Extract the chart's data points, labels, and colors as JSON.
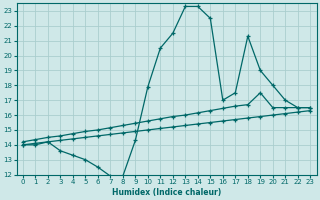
{
  "xlabel": "Humidex (Indice chaleur)",
  "background_color": "#cfe8e8",
  "grid_color": "#aacece",
  "line_color": "#006868",
  "xlim": [
    -0.5,
    23.5
  ],
  "ylim": [
    12,
    23.5
  ],
  "xticks": [
    0,
    1,
    2,
    3,
    4,
    5,
    6,
    7,
    8,
    9,
    10,
    11,
    12,
    13,
    14,
    15,
    16,
    17,
    18,
    19,
    20,
    21,
    22,
    23
  ],
  "yticks": [
    12,
    13,
    14,
    15,
    16,
    17,
    18,
    19,
    20,
    21,
    22,
    23
  ],
  "line1_x": [
    0,
    1,
    2,
    3,
    4,
    5,
    6,
    7,
    8,
    9,
    10,
    11,
    12,
    13,
    14,
    15,
    16,
    17,
    18,
    19,
    20,
    21,
    22,
    23
  ],
  "line1_y": [
    14.0,
    14.0,
    14.2,
    13.6,
    13.3,
    13.0,
    12.5,
    11.9,
    11.9,
    14.3,
    17.9,
    20.5,
    21.5,
    23.3,
    23.3,
    22.5,
    17.0,
    17.5,
    21.3,
    19.0,
    18.0,
    17.0,
    16.5,
    16.5
  ],
  "line2_x": [
    0,
    1,
    2,
    3,
    4,
    5,
    6,
    7,
    8,
    9,
    10,
    11,
    12,
    13,
    14,
    15,
    16,
    17,
    18,
    19,
    20,
    21,
    22,
    23
  ],
  "line2_y": [
    14.2,
    14.35,
    14.5,
    14.6,
    14.75,
    14.9,
    15.0,
    15.15,
    15.3,
    15.45,
    15.6,
    15.75,
    15.9,
    16.0,
    16.15,
    16.3,
    16.45,
    16.6,
    16.7,
    17.5,
    16.5,
    16.5,
    16.5,
    16.5
  ],
  "line3_x": [
    0,
    1,
    2,
    3,
    4,
    5,
    6,
    7,
    8,
    9,
    10,
    11,
    12,
    13,
    14,
    15,
    16,
    17,
    18,
    19,
    20,
    21,
    22,
    23
  ],
  "line3_y": [
    14.0,
    14.1,
    14.2,
    14.3,
    14.4,
    14.5,
    14.6,
    14.7,
    14.8,
    14.9,
    15.0,
    15.1,
    15.2,
    15.3,
    15.4,
    15.5,
    15.6,
    15.7,
    15.8,
    15.9,
    16.0,
    16.1,
    16.2,
    16.3
  ]
}
